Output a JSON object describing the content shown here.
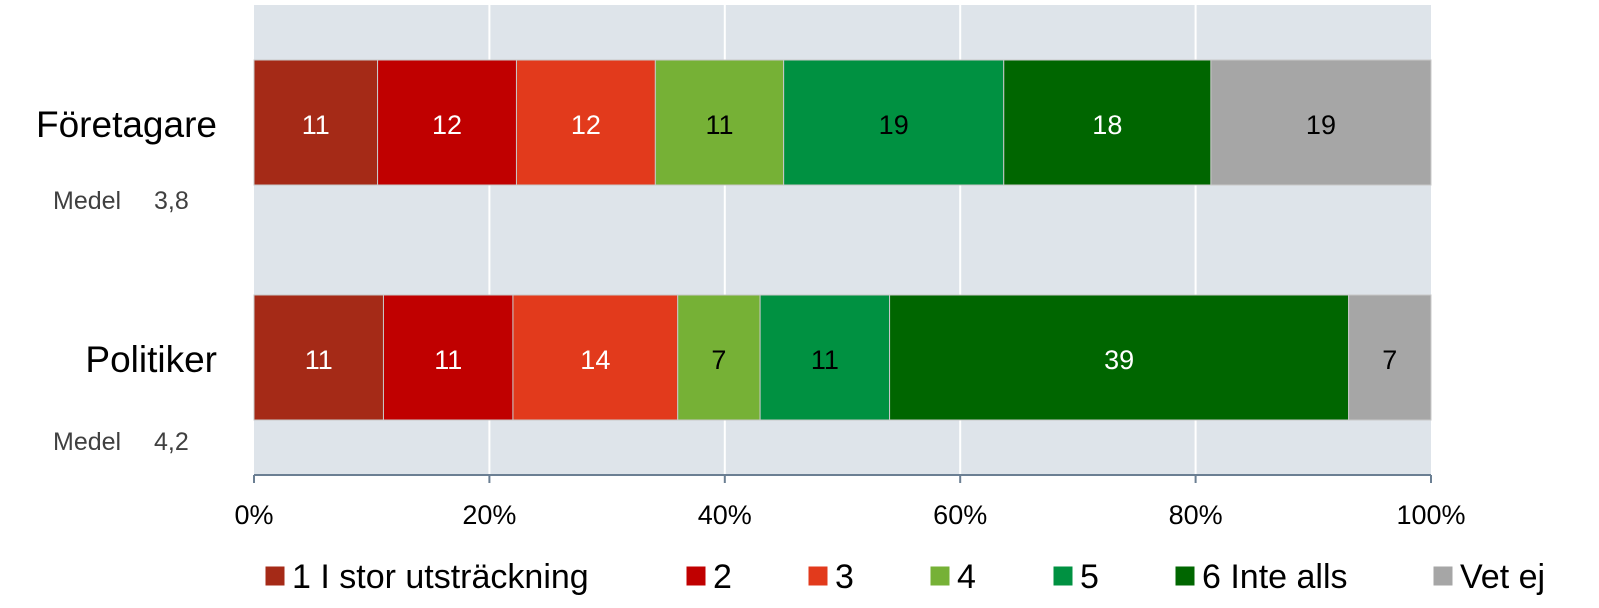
{
  "chart_data": {
    "type": "bar",
    "orientation": "horizontal",
    "stacked": "percent",
    "categories": [
      "Företagare",
      "Politiker"
    ],
    "means": [
      {
        "label": "Medel",
        "value": "3,8"
      },
      {
        "label": "Medel",
        "value": "4,2"
      }
    ],
    "series": [
      {
        "name": "1 I stor utsträckning",
        "color": "#a52a17",
        "label_color": "#ffffff",
        "values": [
          11,
          11
        ],
        "cumulative_pct": [
          10.5,
          11
        ]
      },
      {
        "name": "2",
        "color": "#c00000",
        "label_color": "#ffffff",
        "values": [
          12,
          11
        ],
        "cumulative_pct": [
          22.3,
          22
        ]
      },
      {
        "name": "3",
        "color": "#e23a1c",
        "label_color": "#ffffff",
        "values": [
          12,
          14
        ],
        "cumulative_pct": [
          34.1,
          36
        ]
      },
      {
        "name": "4",
        "color": "#76b136",
        "label_color": "#000000",
        "values": [
          11,
          7
        ],
        "cumulative_pct": [
          45,
          43
        ]
      },
      {
        "name": "5",
        "color": "#009141",
        "label_color": "#000000",
        "values": [
          19,
          11
        ],
        "cumulative_pct": [
          63.7,
          54
        ]
      },
      {
        "name": "6 Inte alls",
        "color": "#006600",
        "label_color": "#ffffff",
        "values": [
          18,
          39
        ],
        "cumulative_pct": [
          81.3,
          93
        ]
      },
      {
        "name": "Vet ej",
        "color": "#a6a6a6",
        "label_color": "#000000",
        "values": [
          19,
          7
        ],
        "cumulative_pct": [
          100,
          100
        ]
      }
    ],
    "xlim": [
      0,
      100
    ],
    "x_ticks": [
      "0%",
      "20%",
      "40%",
      "60%",
      "80%",
      "100%"
    ],
    "grid": true,
    "plot_background": "#dee4ea",
    "legend_position": "bottom"
  }
}
